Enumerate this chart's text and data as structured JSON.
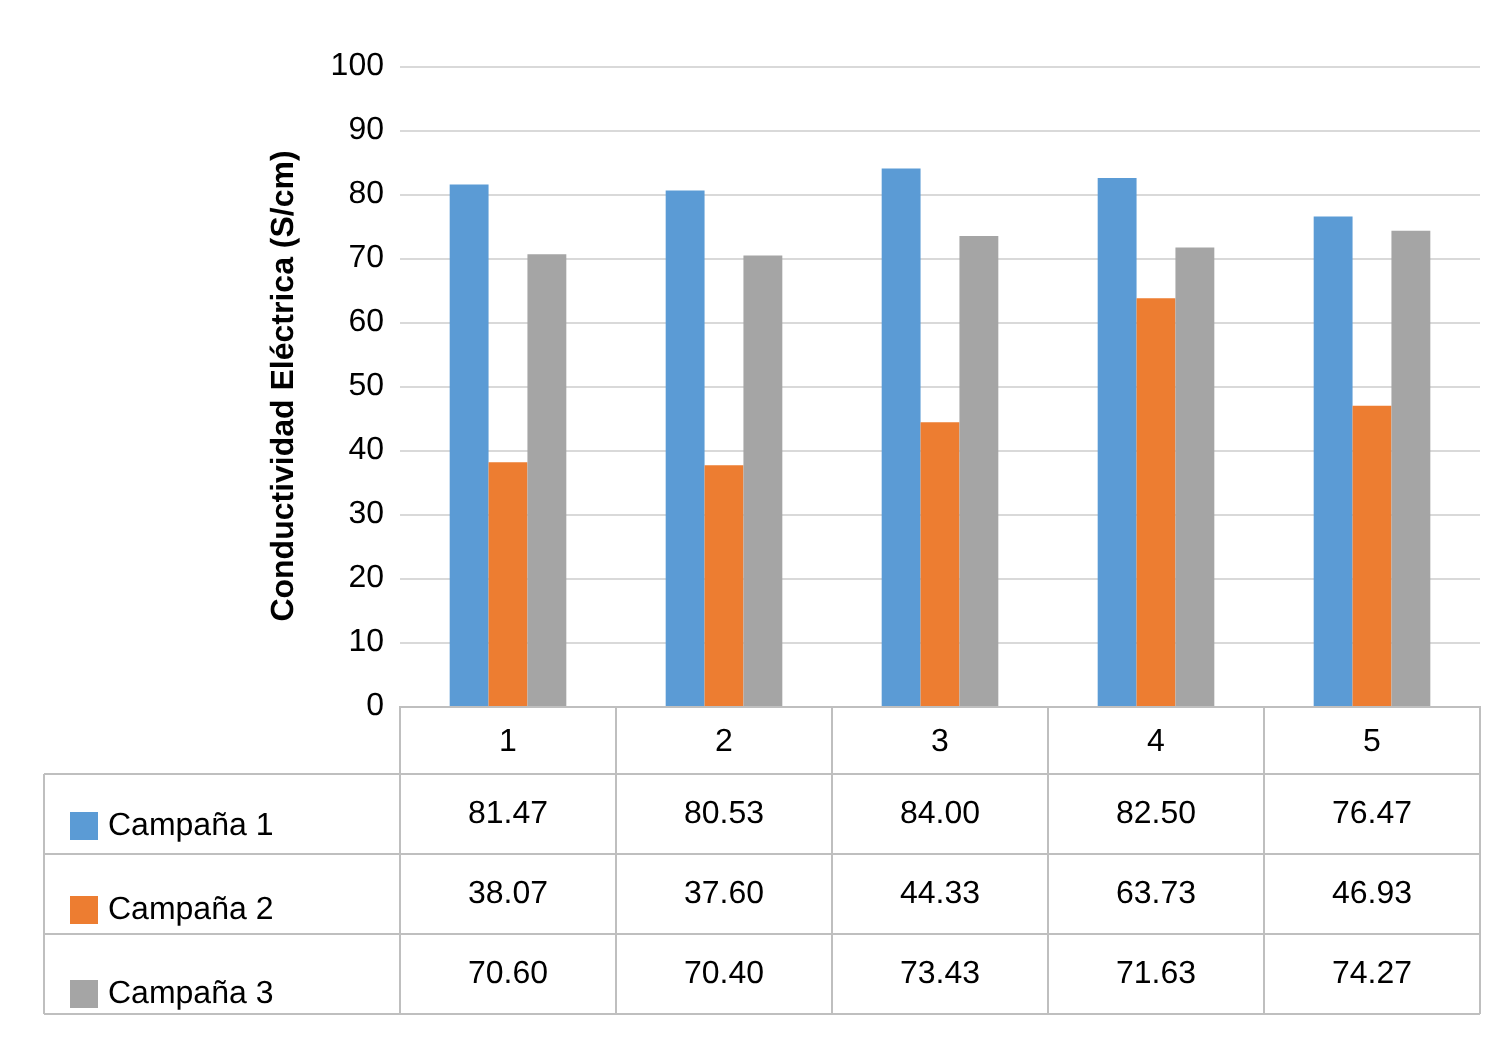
{
  "chart_data": {
    "type": "bar",
    "ylabel": "Conductividad Eléctrica (S/cm)",
    "categories": [
      "1",
      "2",
      "3",
      "4",
      "5"
    ],
    "series": [
      {
        "name": "Campaña 1",
        "color": "#5b9bd5",
        "values": [
          81.47,
          80.53,
          84.0,
          82.5,
          76.47
        ],
        "value_labels": [
          "81.47",
          "80.53",
          "84.00",
          "82.50",
          "76.47"
        ]
      },
      {
        "name": "Campaña 2",
        "color": "#ed7d31",
        "values": [
          38.07,
          37.6,
          44.33,
          63.73,
          46.93
        ],
        "value_labels": [
          "38.07",
          "37.60",
          "44.33",
          "63.73",
          "46.93"
        ]
      },
      {
        "name": "Campaña 3",
        "color": "#a5a5a5",
        "values": [
          70.6,
          70.4,
          73.43,
          71.63,
          74.27
        ],
        "value_labels": [
          "70.60",
          "70.40",
          "73.43",
          "71.63",
          "74.27"
        ]
      }
    ],
    "ylim": [
      0,
      100
    ],
    "yticks": [
      0,
      10,
      20,
      30,
      40,
      50,
      60,
      70,
      80,
      90,
      100
    ],
    "grid": "y",
    "legend": "bottom left"
  }
}
